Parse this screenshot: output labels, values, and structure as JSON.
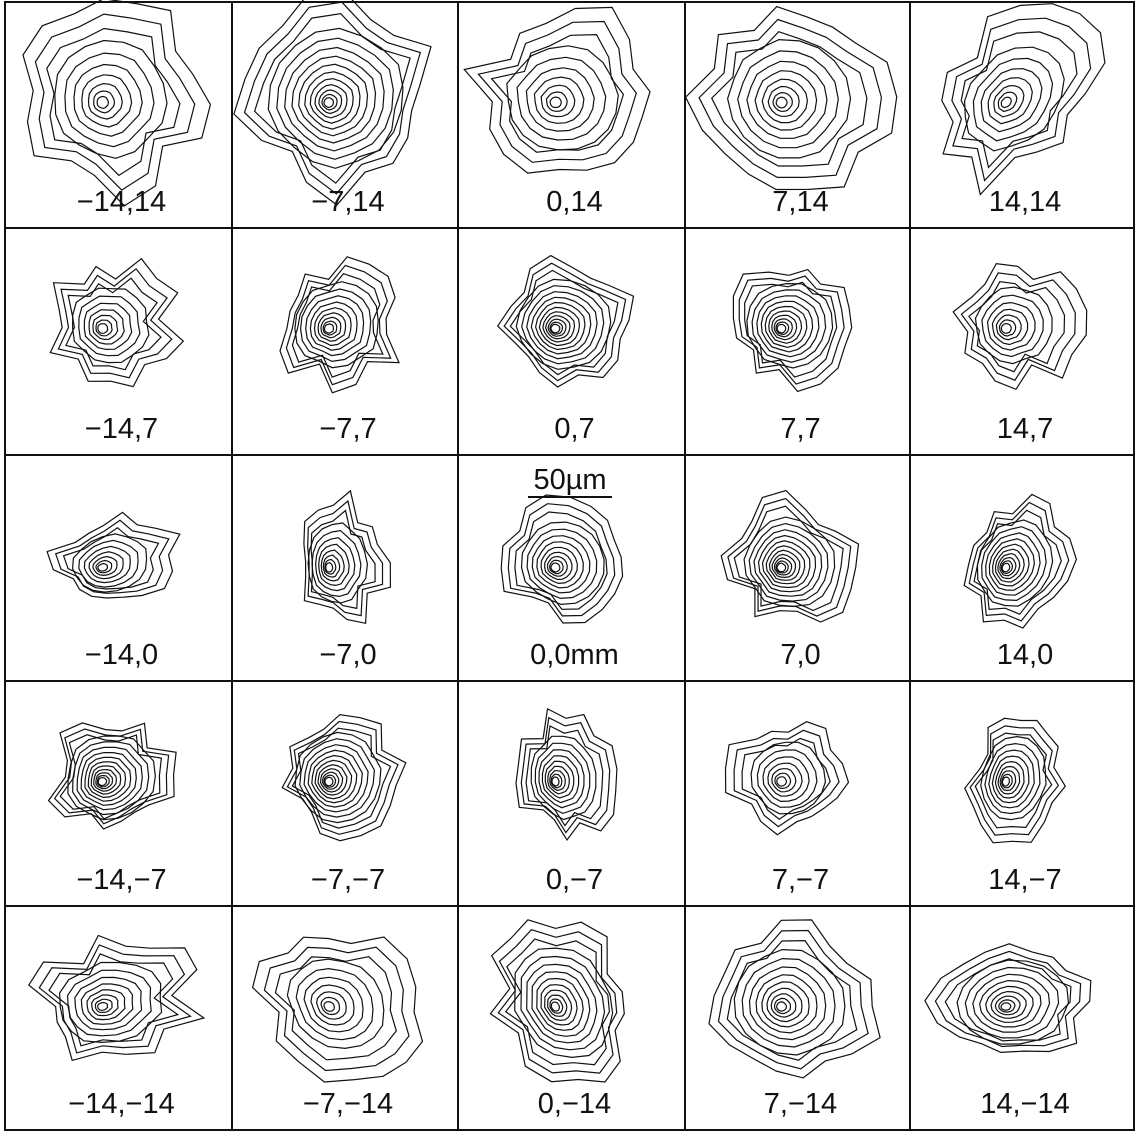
{
  "grid": {
    "rows": [
      [
        "−14,14",
        "−7,14",
        "0,14",
        "7,14",
        "14,14"
      ],
      [
        "−14,7",
        "−7,7",
        "0,7",
        "7,7",
        "14,7"
      ],
      [
        "−14,0",
        "−7,0",
        "0,0mm",
        "7,0",
        "14,0"
      ],
      [
        "−14,−7",
        "−7,−7",
        "0,−7",
        "7,−7",
        "14,−7"
      ],
      [
        "−14,−14",
        "−7,−14",
        "0,−14",
        "7,−14",
        "14,−14"
      ]
    ],
    "scale_bar": "50µm"
  }
}
